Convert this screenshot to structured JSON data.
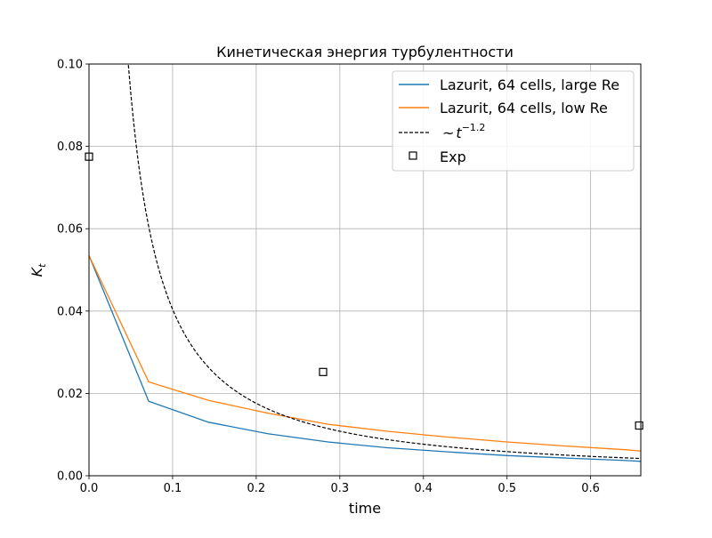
{
  "chart_data": {
    "type": "line",
    "title": "Кинетическая энергия турбулентности",
    "xlabel": "time",
    "ylabel_base": "K",
    "ylabel_sub": "t",
    "xlim": [
      0,
      0.66
    ],
    "ylim": [
      0,
      0.1
    ],
    "xticks": [
      0,
      0.1,
      0.2,
      0.3,
      0.4,
      0.5,
      0.6
    ],
    "xtick_labels": [
      "0.0",
      "0.1",
      "0.2",
      "0.3",
      "0.4",
      "0.5",
      "0.6"
    ],
    "yticks": [
      0,
      0.02,
      0.04,
      0.06,
      0.08,
      0.1
    ],
    "ytick_labels": [
      "0.00",
      "0.02",
      "0.04",
      "0.06",
      "0.08",
      "0.10"
    ],
    "grid": true,
    "legend_position": "top-right",
    "series": [
      {
        "name": "Lazurit, 64 cells, large Re",
        "color": "#1f77b4",
        "style": "solid",
        "x": [
          0,
          0.0714,
          0.143,
          0.214,
          0.286,
          0.357,
          0.429,
          0.5,
          0.571,
          0.643,
          0.66
        ],
        "y": [
          0.0535,
          0.0181,
          0.013,
          0.0102,
          0.0082,
          0.0068,
          0.0058,
          0.0049,
          0.0043,
          0.0037,
          0.0035
        ]
      },
      {
        "name": "Lazurit, 64 cells, low Re",
        "color": "#ff7f0e",
        "style": "solid",
        "x": [
          0,
          0.0714,
          0.143,
          0.214,
          0.286,
          0.357,
          0.429,
          0.5,
          0.571,
          0.643,
          0.66
        ],
        "y": [
          0.0535,
          0.0228,
          0.0183,
          0.0152,
          0.0125,
          0.0108,
          0.0094,
          0.0082,
          0.0072,
          0.0063,
          0.006
        ]
      },
      {
        "name_prefix": "~",
        "name_base": "t",
        "name_exp": "−1.2",
        "color": "#000000",
        "style": "dashed",
        "formula": {
          "coefficient": 0.00255,
          "exponent": -1.2
        }
      }
    ],
    "scatter": {
      "name": "Exp",
      "marker": "square",
      "x": [
        0.0,
        0.28,
        0.658
      ],
      "y": [
        0.0775,
        0.0252,
        0.0122
      ]
    }
  }
}
